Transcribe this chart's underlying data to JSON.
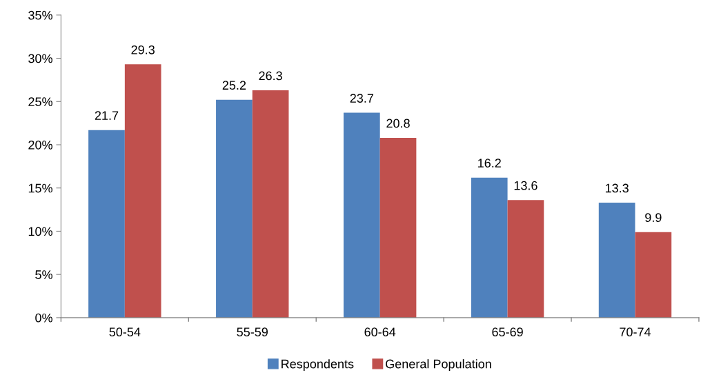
{
  "chart_data": {
    "type": "bar",
    "categories": [
      "50-54",
      "55-59",
      "60-64",
      "65-69",
      "70-74"
    ],
    "series": [
      {
        "name": "Respondents",
        "color": "#4f81bd",
        "values": [
          21.7,
          25.2,
          23.7,
          16.2,
          13.3
        ]
      },
      {
        "name": "General Population",
        "color": "#c0504d",
        "values": [
          29.3,
          26.3,
          20.8,
          13.6,
          9.9
        ]
      }
    ],
    "ylim": [
      0,
      35
    ],
    "yticks": [
      {
        "value": 0,
        "label": "0%"
      },
      {
        "value": 5,
        "label": "5%"
      },
      {
        "value": 10,
        "label": "10%"
      },
      {
        "value": 15,
        "label": "15%"
      },
      {
        "value": 20,
        "label": "20%"
      },
      {
        "value": 25,
        "label": "25%"
      },
      {
        "value": 30,
        "label": "30%"
      },
      {
        "value": 35,
        "label": "35%"
      }
    ],
    "data_labels": true,
    "grid": false,
    "legend": "bottom"
  }
}
